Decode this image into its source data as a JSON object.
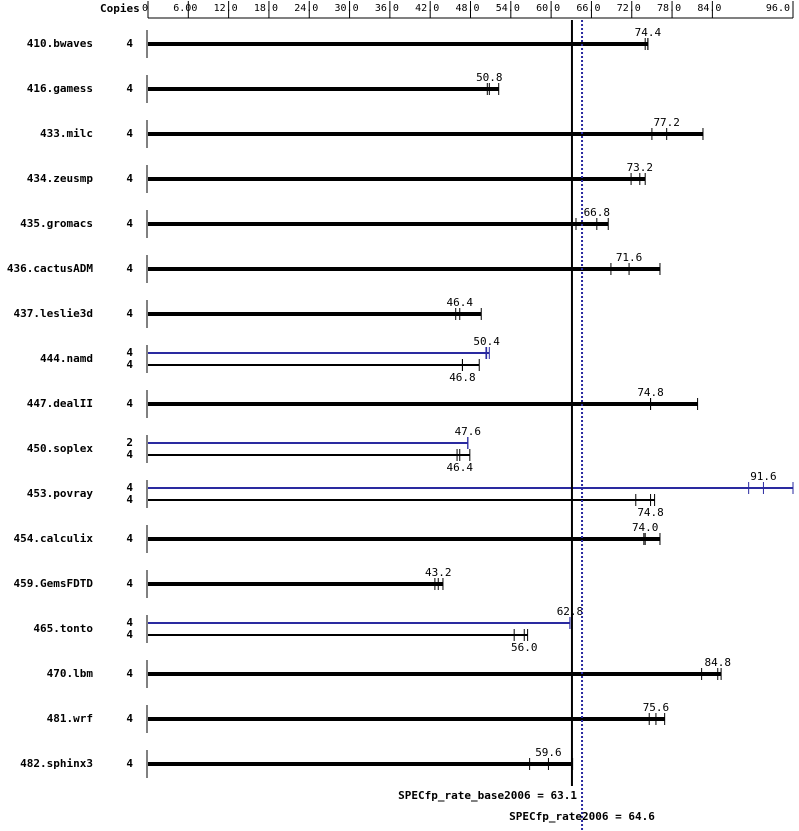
{
  "chart_data": {
    "type": "bar",
    "orientation": "horizontal",
    "copies_header": "Copies",
    "categories": [
      "410.bwaves",
      "416.gamess",
      "433.milc",
      "434.zeusmp",
      "435.gromacs",
      "436.cactusADM",
      "437.leslie3d",
      "444.namd",
      "447.dealII",
      "450.soplex",
      "453.povray",
      "454.calculix",
      "459.GemsFDTD",
      "465.tonto",
      "470.lbm",
      "481.wrf",
      "482.sphinx3"
    ],
    "xlim": [
      0,
      96
    ],
    "xticks": [
      0,
      {
        "value": 6,
        "label": "6.00"
      },
      {
        "value": 12,
        "label": "12.0"
      },
      {
        "value": 18,
        "label": "18.0"
      },
      {
        "value": 24,
        "label": "24.0"
      },
      {
        "value": 30,
        "label": "30.0"
      },
      {
        "value": 36,
        "label": "36.0"
      },
      {
        "value": 42,
        "label": "42.0"
      },
      {
        "value": 48,
        "label": "48.0"
      },
      {
        "value": 54,
        "label": "54.0"
      },
      {
        "value": 60,
        "label": "60.0"
      },
      {
        "value": 66,
        "label": "66.0"
      },
      {
        "value": 72,
        "label": "72.0"
      },
      {
        "value": 78,
        "label": "78.0"
      },
      {
        "value": 84,
        "label": "84.0"
      },
      {
        "value": 96,
        "label": "96.0"
      }
    ],
    "series": [
      {
        "name": "base",
        "color": "#000000",
        "copies": [
          4,
          4,
          4,
          4,
          4,
          4,
          4,
          4,
          4,
          4,
          4,
          4,
          4,
          4,
          4,
          4,
          4
        ],
        "values": [
          74.4,
          50.8,
          77.2,
          73.2,
          66.8,
          71.6,
          46.4,
          46.8,
          74.8,
          46.4,
          74.8,
          74,
          43.2,
          56,
          84.8,
          75.6,
          59.6
        ],
        "value_labels": [
          "74.4",
          "50.8",
          "77.2",
          "73.2",
          "66.8",
          "71.6",
          "46.4",
          "46.8",
          "74.8",
          "46.4",
          "74.8",
          "74.0",
          "43.2",
          "56.0",
          "84.8",
          "75.6",
          "59.6"
        ],
        "runs": [
          [
            74.0,
            74.4
          ],
          [
            50.5,
            52.2
          ],
          [
            75.0,
            82.6
          ],
          [
            71.9,
            74.0
          ],
          [
            63.7,
            68.5
          ],
          [
            68.9,
            76.2
          ],
          [
            45.8,
            49.6
          ],
          [
            46.8,
            49.3
          ],
          [
            74.8,
            81.8
          ],
          [
            46.0,
            47.9
          ],
          [
            72.6,
            75.4
          ],
          [
            73.8,
            76.2
          ],
          [
            42.7,
            43.9
          ],
          [
            54.5,
            56.5
          ],
          [
            82.4,
            85.3
          ],
          [
            74.6,
            76.9
          ],
          [
            56.8,
            63.2
          ]
        ]
      },
      {
        "name": "peak",
        "color": "#2a2aa0",
        "copies": [
          null,
          null,
          null,
          null,
          null,
          null,
          null,
          4,
          null,
          2,
          4,
          null,
          null,
          4,
          null,
          null,
          null
        ],
        "values": [
          null,
          null,
          null,
          null,
          null,
          null,
          null,
          50.4,
          null,
          47.6,
          91.6,
          null,
          null,
          62.8,
          null,
          null,
          null
        ],
        "value_labels": [
          null,
          null,
          null,
          null,
          null,
          null,
          null,
          "50.4",
          null,
          "47.6",
          "91.6",
          null,
          null,
          "62.8",
          null,
          null,
          null
        ],
        "runs": [
          null,
          null,
          null,
          null,
          null,
          null,
          null,
          [
            50.3,
            50.8
          ],
          null,
          [
            47.6,
            47.6
          ],
          [
            89.4,
            96.0
          ],
          null,
          null,
          [
            62.8,
            62.8
          ],
          null,
          null,
          null
        ]
      }
    ],
    "reference_lines": [
      {
        "label": "SPECfp_rate_base2006 = 63.1",
        "value": 63.1,
        "color": "#000000",
        "style": "solid"
      },
      {
        "label": "SPECfp_rate2006 = 64.6",
        "value": 64.6,
        "color": "#2a2aa0",
        "style": "dotted"
      }
    ]
  }
}
